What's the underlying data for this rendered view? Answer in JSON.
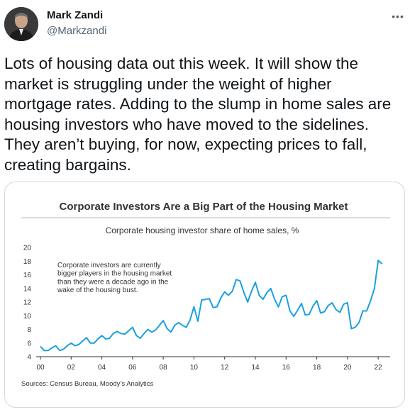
{
  "author": {
    "name": "Mark Zandi",
    "handle": "@Markzandi",
    "avatar_icon": "profile-photo"
  },
  "more_icon": "more-horizontal-icon",
  "tweet": {
    "text": "Lots of housing data out this week. It will show the\nmarket is struggling under the weight of higher\nmortgage rates. Adding to the slump in home sales are\nhousing investors who have moved to the sidelines.\nThey aren’t buying, for now, expecting prices to fall,\ncreating bargains."
  },
  "colors": {
    "line": "#1ba0e1",
    "title": "#333333",
    "text_secondary": "#536471"
  },
  "chart_data": {
    "type": "line",
    "title": "Corporate Investors Are a Big Part of the Housing Market",
    "subtitle": "Corporate housing investor share of home sales, %",
    "annotation": [
      "Corporate investors are currently",
      "bigger players in the housing market",
      "than they were a decade ago in the",
      "wake of the housing bust."
    ],
    "source": "Sources: Census Bureau, Moody’s Analytics",
    "xlabel": "",
    "ylabel": "",
    "xlim": [
      2000,
      2022.5
    ],
    "ylim": [
      4,
      20
    ],
    "x_ticks": [
      2000,
      2002,
      2004,
      2006,
      2008,
      2010,
      2012,
      2014,
      2016,
      2018,
      2020,
      2022
    ],
    "x_tick_labels": [
      "00",
      "02",
      "04",
      "06",
      "08",
      "10",
      "12",
      "14",
      "16",
      "18",
      "20",
      "22"
    ],
    "y_ticks": [
      4,
      6,
      8,
      10,
      12,
      14,
      16,
      18,
      20
    ],
    "y_tick_labels": [
      "4",
      "6",
      "8",
      "10",
      "12",
      "14",
      "16",
      "18",
      "20"
    ],
    "grid": false,
    "series": [
      {
        "x": [
          2000,
          2000.25,
          2000.5,
          2000.75,
          2001,
          2001.25,
          2001.5,
          2001.75,
          2002,
          2002.25,
          2002.5,
          2002.75,
          2003,
          2003.25,
          2003.5,
          2003.75,
          2004,
          2004.25,
          2004.5,
          2004.75,
          2005,
          2005.25,
          2005.5,
          2005.75,
          2006,
          2006.25,
          2006.5,
          2006.75,
          2007,
          2007.25,
          2007.5,
          2007.75,
          2008,
          2008.25,
          2008.5,
          2008.75,
          2009,
          2009.25,
          2009.5,
          2009.75,
          2010,
          2010.25,
          2010.5,
          2010.75,
          2011,
          2011.25,
          2011.5,
          2011.75,
          2012,
          2012.25,
          2012.5,
          2012.75,
          2013,
          2013.25,
          2013.5,
          2013.75,
          2014,
          2014.25,
          2014.5,
          2014.75,
          2015,
          2015.25,
          2015.5,
          2015.75,
          2016,
          2016.25,
          2016.5,
          2016.75,
          2017,
          2017.25,
          2017.5,
          2017.75,
          2018,
          2018.25,
          2018.5,
          2018.75,
          2019,
          2019.25,
          2019.5,
          2019.75,
          2020,
          2020.25,
          2020.5,
          2020.75,
          2021,
          2021.25,
          2021.5,
          2021.75,
          2022,
          2022.25
        ],
        "y": [
          5.5,
          4.9,
          4.9,
          5.3,
          5.6,
          4.9,
          5.1,
          5.6,
          6.0,
          5.6,
          5.8,
          6.3,
          6.8,
          6.0,
          6.0,
          6.6,
          7.1,
          6.6,
          6.7,
          7.4,
          7.7,
          7.4,
          7.3,
          7.8,
          8.3,
          7.1,
          6.7,
          7.4,
          8.0,
          7.6,
          7.9,
          8.6,
          9.3,
          8.1,
          7.6,
          8.6,
          9.0,
          8.6,
          8.3,
          9.4,
          11.3,
          9.2,
          12.3,
          12.4,
          12.5,
          11.2,
          11.3,
          12.6,
          13.5,
          13.0,
          13.6,
          15.3,
          15.1,
          13.4,
          12.0,
          13.6,
          14.9,
          13.0,
          12.4,
          13.4,
          14.0,
          12.4,
          11.3,
          12.8,
          13.0,
          10.7,
          9.9,
          10.8,
          11.8,
          10.1,
          10.2,
          11.4,
          12.2,
          10.4,
          10.6,
          11.5,
          11.9,
          10.9,
          10.5,
          11.7,
          11.9,
          8.1,
          8.3,
          9.0,
          10.7,
          10.7,
          12.2,
          14.0,
          18.1,
          17.6
        ],
        "color": "#1ba0e1"
      }
    ]
  }
}
